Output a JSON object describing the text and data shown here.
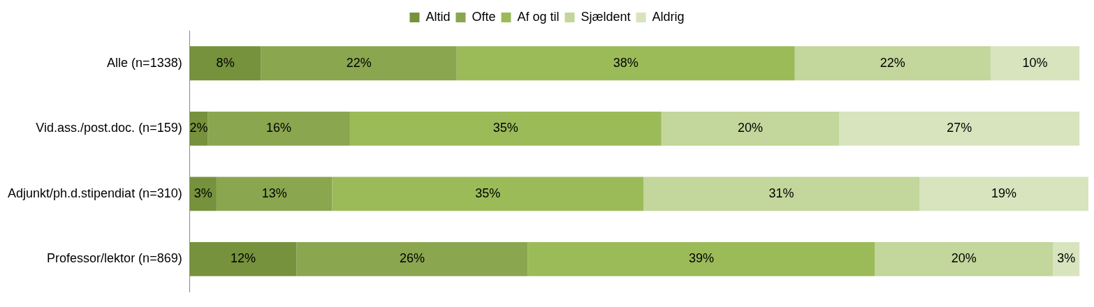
{
  "chart_data": {
    "type": "bar",
    "orientation": "horizontal",
    "stacked": true,
    "legend": "top",
    "tick_labels": "y",
    "categories": [
      "Alle (n=1338)",
      "Vid.ass./post.doc. (n=159)",
      "Adjunkt/ph.d.stipendiat (n=310)",
      "Professor/lektor (n=869)"
    ],
    "series": [
      {
        "name": "Altid",
        "color": "#76923c",
        "values": [
          8,
          2,
          3,
          12
        ],
        "value_labels": [
          "8%",
          "2%",
          "3%",
          "12%"
        ]
      },
      {
        "name": "Ofte",
        "color": "#8aa64f",
        "values": [
          22,
          16,
          13,
          26
        ],
        "value_labels": [
          "22%",
          "16%",
          "13%",
          "26%"
        ]
      },
      {
        "name": "Af og til",
        "color": "#9bbb59",
        "values": [
          38,
          35,
          35,
          39
        ],
        "value_labels": [
          "38%",
          "35%",
          "35%",
          "39%"
        ]
      },
      {
        "name": "Sjældent",
        "color": "#c3d69b",
        "values": [
          22,
          20,
          31,
          20
        ],
        "value_labels": [
          "22%",
          "20%",
          "31%",
          "20%"
        ]
      },
      {
        "name": "Aldrig",
        "color": "#d7e4bd",
        "values": [
          10,
          27,
          19,
          3
        ],
        "value_labels": [
          "10%",
          "27%",
          "19%",
          "3%"
        ]
      }
    ]
  }
}
